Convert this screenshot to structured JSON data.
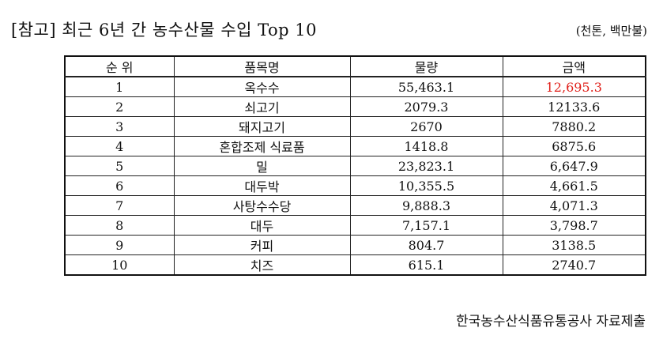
{
  "header": {
    "title": "[참고] 최근 6년 간 농수산물 수입 Top 10",
    "unit": "(천톤, 백만불)"
  },
  "table": {
    "columns": [
      "순 위",
      "품목명",
      "물량",
      "금액"
    ],
    "rows": [
      {
        "rank": "1",
        "item": "옥수수",
        "volume": "55,463.1",
        "amount": "12,695.3"
      },
      {
        "rank": "2",
        "item": "쇠고기",
        "volume": "2079.3",
        "amount": "12133.6"
      },
      {
        "rank": "3",
        "item": "돼지고기",
        "volume": "2670",
        "amount": "7880.2"
      },
      {
        "rank": "4",
        "item": "혼합조제 식료품",
        "volume": "1418.8",
        "amount": "6875.6"
      },
      {
        "rank": "5",
        "item": "밀",
        "volume": "23,823.1",
        "amount": "6,647.9"
      },
      {
        "rank": "6",
        "item": "대두박",
        "volume": "10,355.5",
        "amount": "4,661.5"
      },
      {
        "rank": "7",
        "item": "사탕수수당",
        "volume": "9,888.3",
        "amount": "4,071.3"
      },
      {
        "rank": "8",
        "item": "대두",
        "volume": "7,157.1",
        "amount": "3,798.7"
      },
      {
        "rank": "9",
        "item": "커피",
        "volume": "804.7",
        "amount": "3138.5"
      },
      {
        "rank": "10",
        "item": "치즈",
        "volume": "615.1",
        "amount": "2740.7"
      }
    ],
    "highlight_color": "#e0201a"
  },
  "footer": {
    "source": "한국농수산식품유통공사 자료제출"
  }
}
